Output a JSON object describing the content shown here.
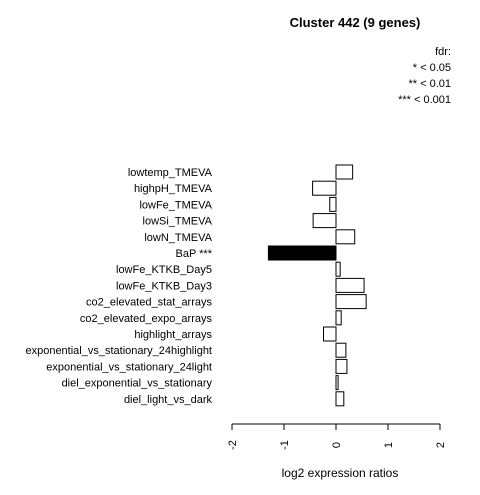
{
  "chart_data": {
    "type": "bar",
    "orientation": "horizontal",
    "title": "Cluster 442 (9 genes)",
    "xlabel": "log2 expression ratios",
    "ylabel": "",
    "xlim": [
      -2,
      2
    ],
    "xticks": [
      -2,
      -1,
      0,
      1,
      2
    ],
    "xtick_labels": [
      "-2",
      "-1",
      "0",
      "1",
      "2"
    ],
    "legend": {
      "title": "fdr:",
      "entries": [
        "* < 0.05",
        "** < 0.01",
        "*** < 0.001"
      ],
      "placement": "top-right"
    },
    "categories": [
      "lowtemp_TMEVA",
      "highpH_TMEVA",
      "lowFe_TMEVA",
      "lowSi_TMEVA",
      "lowN_TMEVA",
      "BaP ***",
      "lowFe_KTKB_Day5",
      "lowFe_KTKB_Day3",
      "co2_elevated_stat_arrays",
      "co2_elevated_expo_arrays",
      "highlight_arrays",
      "exponential_vs_stationary_24highlight",
      "exponential_vs_stationary_24light",
      "diel_exponential_vs_stationary",
      "diel_light_vs_dark"
    ],
    "values": [
      0.32,
      -0.45,
      -0.12,
      -0.44,
      0.36,
      -1.3,
      0.08,
      0.54,
      0.58,
      0.1,
      -0.24,
      0.19,
      0.21,
      0.04,
      0.15
    ],
    "highlighted": [
      false,
      false,
      false,
      false,
      false,
      true,
      false,
      false,
      false,
      false,
      false,
      false,
      false,
      false,
      false
    ],
    "colors": {
      "bar_fill": "#ffffff",
      "bar_stroke": "#000000",
      "highlight_fill": "#000000"
    }
  }
}
